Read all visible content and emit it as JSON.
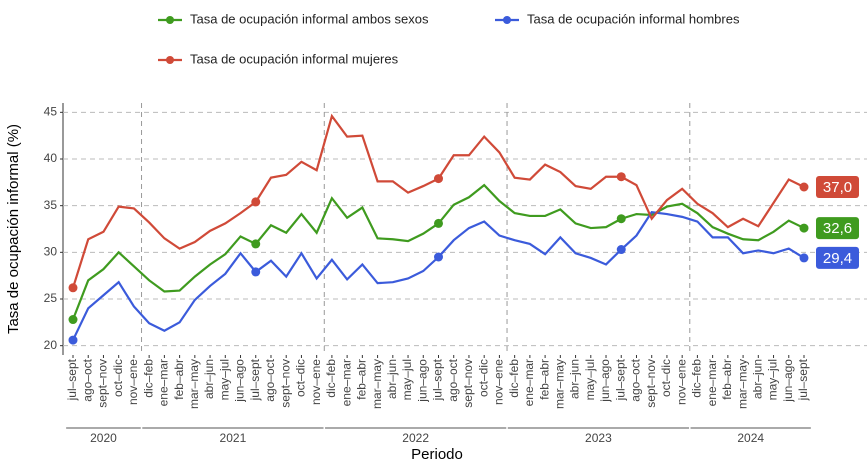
{
  "chart_data": {
    "type": "line",
    "x_label": "Periodo",
    "y_label": "Tasa de ocupación informal (%)",
    "legend": "top",
    "grid": true,
    "ylim": [
      19,
      46
    ],
    "yticks": [
      20,
      25,
      30,
      35,
      40,
      45
    ],
    "groups": [
      {
        "name": "2020",
        "categories": [
          "jul–sept",
          "ago–oct",
          "sept–nov",
          "oct–dic",
          "nov–ene"
        ]
      },
      {
        "name": "2021",
        "categories": [
          "dic–feb",
          "ene–mar",
          "feb–abr",
          "mar–may",
          "abr–jun",
          "may–jul",
          "jun–ago",
          "jul–sept",
          "ago–oct",
          "sept–nov",
          "oct–dic",
          "nov–ene"
        ]
      },
      {
        "name": "2022",
        "categories": [
          "dic–feb",
          "ene–mar",
          "feb–abr",
          "mar–may",
          "abr–jun",
          "may–jul",
          "jun–ago",
          "jul–sept",
          "ago–oct",
          "sept–nov",
          "oct–dic",
          "nov–ene"
        ]
      },
      {
        "name": "2023",
        "categories": [
          "dic–feb",
          "ene–mar",
          "feb–abr",
          "mar–may",
          "abr–jun",
          "may–jul",
          "jun–ago",
          "jul–sept",
          "ago–oct",
          "sept–nov",
          "oct–dic",
          "nov–ene"
        ]
      },
      {
        "name": "2024",
        "categories": [
          "dic–feb",
          "ene–mar",
          "feb–abr",
          "mar–may",
          "abr–jun",
          "may–jul",
          "jun–ago",
          "jul–sept"
        ]
      }
    ],
    "series": [
      {
        "name": "Tasa de ocupación informal ambos sexos",
        "color": "#3f9b1f",
        "end_label": "32,6",
        "values": [
          22.8,
          27.0,
          28.2,
          30.0,
          28.5,
          27.0,
          25.8,
          25.9,
          27.4,
          28.7,
          29.8,
          31.7,
          30.9,
          32.9,
          32.1,
          34.1,
          32.1,
          35.8,
          33.7,
          34.8,
          31.5,
          31.4,
          31.2,
          32.0,
          33.1,
          35.1,
          35.9,
          37.2,
          35.5,
          34.2,
          33.9,
          33.9,
          34.6,
          33.1,
          32.6,
          32.7,
          33.6,
          34.1,
          34.0,
          34.9,
          35.2,
          34.2,
          32.7,
          32.0,
          31.4,
          31.3,
          32.2,
          33.4,
          32.6
        ]
      },
      {
        "name": "Tasa de ocupación informal hombres",
        "color": "#3b5bdb",
        "end_label": "29,4",
        "values": [
          20.6,
          24.0,
          25.4,
          26.8,
          24.2,
          22.4,
          21.6,
          22.5,
          24.9,
          26.4,
          27.7,
          29.9,
          27.9,
          29.1,
          27.4,
          29.9,
          27.2,
          29.2,
          27.1,
          28.7,
          26.7,
          26.8,
          27.2,
          28.0,
          29.5,
          31.3,
          32.6,
          33.3,
          31.8,
          31.3,
          30.9,
          29.8,
          31.6,
          29.9,
          29.4,
          28.7,
          30.3,
          31.8,
          34.3,
          34.1,
          33.8,
          33.3,
          31.6,
          31.6,
          29.9,
          30.2,
          29.9,
          30.4,
          29.4
        ]
      },
      {
        "name": "Tasa de ocupación informal mujeres",
        "color": "#d04a38",
        "end_label": "37,0",
        "values": [
          26.2,
          31.4,
          32.2,
          34.9,
          34.7,
          33.2,
          31.5,
          30.4,
          31.1,
          32.3,
          33.1,
          34.2,
          35.4,
          38.0,
          38.3,
          39.7,
          38.8,
          44.6,
          42.4,
          42.5,
          37.6,
          37.6,
          36.4,
          37.1,
          37.9,
          40.4,
          40.4,
          42.4,
          40.7,
          38.0,
          37.8,
          39.4,
          38.6,
          37.1,
          36.8,
          38.1,
          38.1,
          37.2,
          33.6,
          35.6,
          36.8,
          35.2,
          34.2,
          32.7,
          33.6,
          32.8,
          35.3,
          37.8,
          37.0
        ]
      }
    ]
  }
}
